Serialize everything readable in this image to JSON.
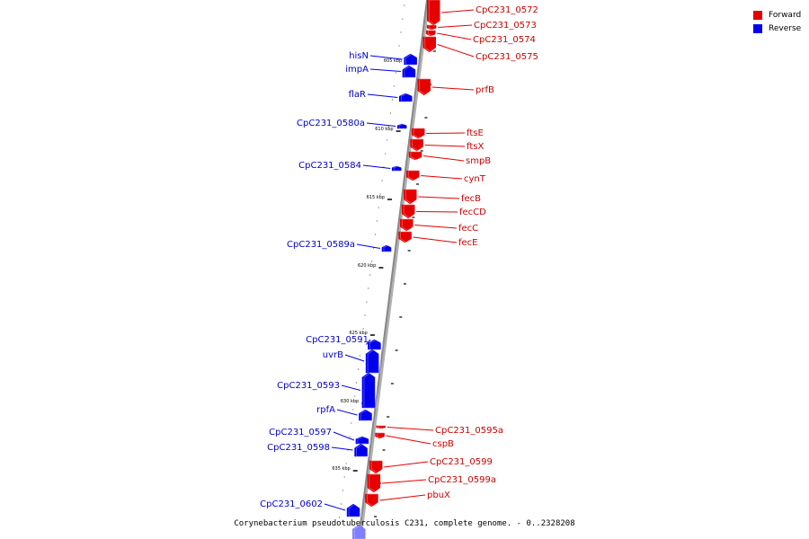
{
  "colors": {
    "forward": "#e60000",
    "reverse": "#0000ee",
    "axis": "#888888"
  },
  "legend": {
    "forward_label": "Forward",
    "reverse_label": "Reverse"
  },
  "caption": "Corynebacterium pseudotuberculosis C231, complete genome. - 0..2328208",
  "ticks": [
    {
      "label": "605 kbp"
    },
    {
      "label": "610 kbp"
    },
    {
      "label": "615 kbp"
    },
    {
      "label": "620 kbp"
    },
    {
      "label": "625 kbp"
    },
    {
      "label": "630 kbp"
    },
    {
      "label": "635 kbp"
    }
  ],
  "forward_genes": [
    {
      "label": "CpC231_0572"
    },
    {
      "label": "CpC231_0573"
    },
    {
      "label": "CpC231_0574"
    },
    {
      "label": "CpC231_0575"
    },
    {
      "label": "prfB"
    },
    {
      "label": "ftsE"
    },
    {
      "label": "ftsX"
    },
    {
      "label": "smpB"
    },
    {
      "label": "cynT"
    },
    {
      "label": "fecB"
    },
    {
      "label": "fecCD"
    },
    {
      "label": "fecC"
    },
    {
      "label": "fecE"
    },
    {
      "label": "CpC231_0595a"
    },
    {
      "label": "cspB"
    },
    {
      "label": "CpC231_0599"
    },
    {
      "label": "CpC231_0599a"
    },
    {
      "label": "pbuX"
    }
  ],
  "reverse_genes": [
    {
      "label": "hisN"
    },
    {
      "label": "impA"
    },
    {
      "label": "flaR"
    },
    {
      "label": "CpC231_0580a"
    },
    {
      "label": "CpC231_0584"
    },
    {
      "label": "CpC231_0589a"
    },
    {
      "label": "CpC231_0591"
    },
    {
      "label": "uvrB"
    },
    {
      "label": "CpC231_0593"
    },
    {
      "label": "rpfA"
    },
    {
      "label": "CpC231_0597"
    },
    {
      "label": "CpC231_0598"
    },
    {
      "label": "CpC231_0602"
    }
  ]
}
